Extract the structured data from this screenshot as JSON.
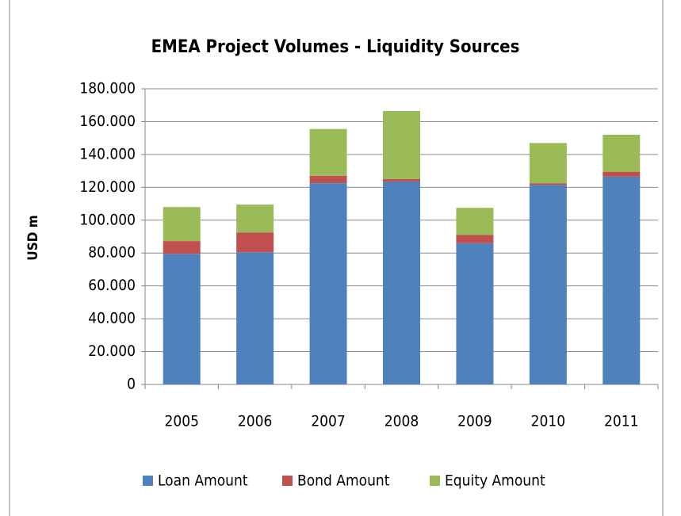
{
  "chart_data": {
    "type": "stacked_bar",
    "title": "EMEA Project Volumes - Liquidity Sources",
    "y_label": "USD m",
    "categories": [
      "2005",
      "2006",
      "2007",
      "2008",
      "2009",
      "2010",
      "2011"
    ],
    "series": [
      {
        "name": "Loan Amount",
        "color": "#4f81bd",
        "values": [
          79500,
          80500,
          122500,
          123500,
          86000,
          121500,
          126500
        ]
      },
      {
        "name": "Bond Amount",
        "color": "#c0504d",
        "values": [
          7800,
          12000,
          4500,
          1500,
          5000,
          1000,
          3000
        ]
      },
      {
        "name": "Equity Amount",
        "color": "#9bbb59",
        "values": [
          20700,
          17000,
          28500,
          41500,
          16500,
          24500,
          22500
        ]
      }
    ],
    "ylim": [
      0,
      180000
    ],
    "yticks": [
      0,
      {
        "value": 20000,
        "label": "20.000"
      },
      {
        "value": 40000,
        "label": "40.000"
      },
      {
        "value": 60000,
        "label": "60.000"
      },
      {
        "value": 80000,
        "label": "80.000"
      },
      {
        "value": 100000,
        "label": "100.000"
      },
      {
        "value": 120000,
        "label": "120.000"
      },
      {
        "value": 140000,
        "label": "140.000"
      },
      {
        "value": 160000,
        "label": "160.000"
      },
      {
        "value": 180000,
        "label": "180.000"
      }
    ],
    "grid": true,
    "legend": "bottom"
  }
}
